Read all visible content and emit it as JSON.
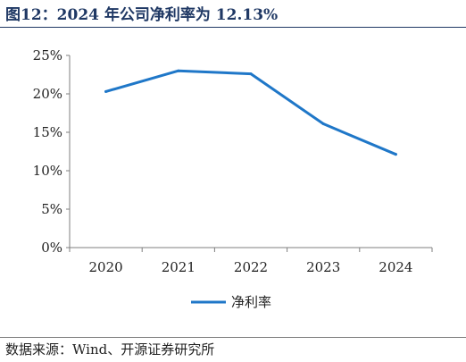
{
  "figure": {
    "title": "图12：2024 年公司净利率为 12.13%",
    "source": "数据来源：Wind、开源证券研究所"
  },
  "chart_data": {
    "type": "line",
    "categories": [
      "2020",
      "2021",
      "2022",
      "2023",
      "2024"
    ],
    "series": [
      {
        "name": "净利率",
        "values": [
          20.3,
          23.0,
          22.6,
          16.1,
          12.13
        ],
        "color": "#1f77c8"
      }
    ],
    "ylim": [
      0,
      25
    ],
    "yticks": [
      0,
      5,
      10,
      15,
      20,
      25
    ],
    "ytick_labels": [
      "0%",
      "5%",
      "10%",
      "15%",
      "20%",
      "25%"
    ],
    "grid": false,
    "legend": "bottom-center"
  }
}
